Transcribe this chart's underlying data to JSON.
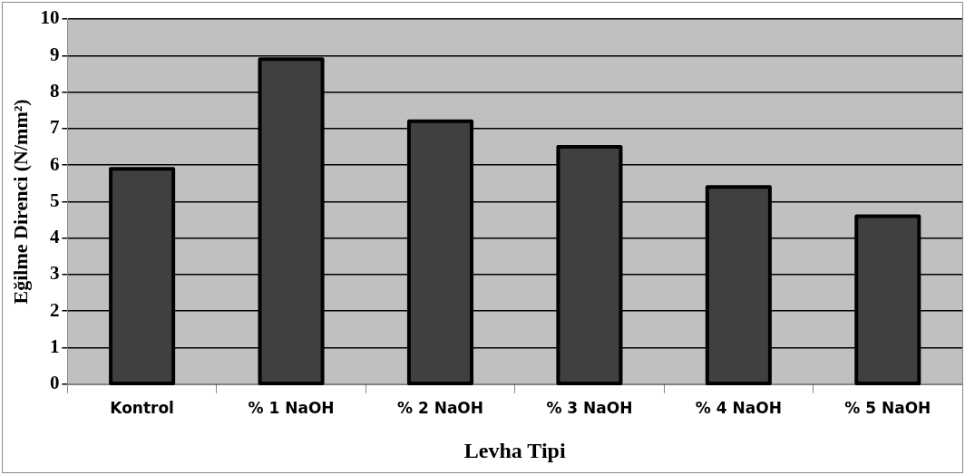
{
  "chart_data": {
    "type": "bar",
    "xlabel": "Levha Tipi",
    "ylabel": "Eğilme Direnci (N/mm²)",
    "categories": [
      "Kontrol",
      "% 1 NaOH",
      "% 2 NaOH",
      "% 3 NaOH",
      "% 4 NaOH",
      "% 5 NaOH"
    ],
    "values": [
      5.9,
      8.9,
      7.2,
      6.5,
      5.4,
      4.6
    ],
    "color": "#404040",
    "ylim": [
      0,
      10
    ],
    "yticks": [
      0,
      1,
      2,
      3,
      4,
      5,
      6,
      7,
      8,
      9,
      10
    ],
    "grid": "y",
    "legend": false
  }
}
